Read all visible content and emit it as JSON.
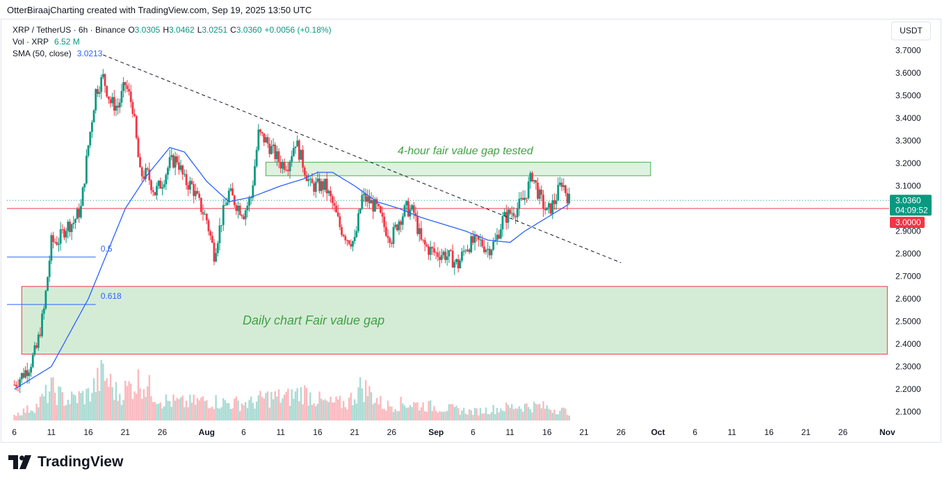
{
  "credit": "OtterBiraajCharting created with TradingView.com, Sep 19, 2025 13:50 UTC",
  "legend": {
    "symbol": "XRP / TetherUS · 6h · Binance",
    "o_label": "O",
    "o": "3.0305",
    "h_label": "H",
    "h": "3.0462",
    "l_label": "L",
    "l": "3.0251",
    "c_label": "C",
    "c": "3.0360",
    "change": "+0.0056 (+0.18%)",
    "vol_label": "Vol · XRP",
    "vol_value": "6.52 M",
    "sma_label": "SMA (50, close)",
    "sma_value": "3.0213"
  },
  "currency": "USDT",
  "brand": "TradingView",
  "colors": {
    "up": "#089981",
    "down": "#f23645",
    "sma": "#2962ff",
    "zone_fill": "#d4ecd5",
    "zone_stroke": "#4caf50",
    "support": "#f23645"
  },
  "chart_data": {
    "type": "candlestick",
    "title": "XRP / TetherUS · 6h · Binance",
    "ylim": [
      2.05,
      3.75
    ],
    "y_ticks": [
      "2.1000",
      "2.2000",
      "2.3000",
      "2.4000",
      "2.5000",
      "2.6000",
      "2.7000",
      "2.8000",
      "2.9000",
      "3.0000",
      "3.1000",
      "3.2000",
      "3.3000",
      "3.4000",
      "3.5000",
      "3.6000",
      "3.7000"
    ],
    "x_ticks": [
      {
        "label": "6",
        "date": "2025-07-06"
      },
      {
        "label": "11",
        "date": "2025-07-11"
      },
      {
        "label": "16",
        "date": "2025-07-16"
      },
      {
        "label": "21",
        "date": "2025-07-21"
      },
      {
        "label": "26",
        "date": "2025-07-26"
      },
      {
        "label": "Aug",
        "date": "2025-08-01"
      },
      {
        "label": "6",
        "date": "2025-08-06"
      },
      {
        "label": "11",
        "date": "2025-08-11"
      },
      {
        "label": "16",
        "date": "2025-08-16"
      },
      {
        "label": "21",
        "date": "2025-08-21"
      },
      {
        "label": "26",
        "date": "2025-08-26"
      },
      {
        "label": "Sep",
        "date": "2025-09-01"
      },
      {
        "label": "6",
        "date": "2025-09-06"
      },
      {
        "label": "11",
        "date": "2025-09-11"
      },
      {
        "label": "16",
        "date": "2025-09-16"
      },
      {
        "label": "21",
        "date": "2025-09-21"
      },
      {
        "label": "26",
        "date": "2025-09-26"
      },
      {
        "label": "Oct",
        "date": "2025-10-01"
      },
      {
        "label": "6",
        "date": "2025-10-06"
      },
      {
        "label": "11",
        "date": "2025-10-11"
      },
      {
        "label": "16",
        "date": "2025-10-16"
      },
      {
        "label": "21",
        "date": "2025-10-21"
      },
      {
        "label": "26",
        "date": "2025-10-26"
      },
      {
        "label": "Nov",
        "date": "2025-11-01"
      }
    ],
    "price_path": [
      [
        "2025-07-06",
        2.22
      ],
      [
        "2025-07-07",
        2.26
      ],
      [
        "2025-07-08",
        2.3
      ],
      [
        "2025-07-09",
        2.38
      ],
      [
        "2025-07-10",
        2.55
      ],
      [
        "2025-07-11",
        2.85
      ],
      [
        "2025-07-12",
        2.86
      ],
      [
        "2025-07-13",
        2.92
      ],
      [
        "2025-07-14",
        2.94
      ],
      [
        "2025-07-15",
        3.0
      ],
      [
        "2025-07-16",
        3.28
      ],
      [
        "2025-07-17",
        3.52
      ],
      [
        "2025-07-18",
        3.58
      ],
      [
        "2025-07-19",
        3.47
      ],
      [
        "2025-07-20",
        3.45
      ],
      [
        "2025-07-21",
        3.55
      ],
      [
        "2025-07-22",
        3.45
      ],
      [
        "2025-07-23",
        3.15
      ],
      [
        "2025-07-24",
        3.15
      ],
      [
        "2025-07-25",
        3.07
      ],
      [
        "2025-07-26",
        3.12
      ],
      [
        "2025-07-27",
        3.2
      ],
      [
        "2025-07-28",
        3.22
      ],
      [
        "2025-07-29",
        3.12
      ],
      [
        "2025-07-30",
        3.1
      ],
      [
        "2025-07-31",
        3.02
      ],
      [
        "2025-08-01",
        2.95
      ],
      [
        "2025-08-02",
        2.8
      ],
      [
        "2025-08-03",
        2.95
      ],
      [
        "2025-08-04",
        3.07
      ],
      [
        "2025-08-05",
        3.02
      ],
      [
        "2025-08-06",
        2.98
      ],
      [
        "2025-08-07",
        3.05
      ],
      [
        "2025-08-08",
        3.33
      ],
      [
        "2025-08-09",
        3.3
      ],
      [
        "2025-08-10",
        3.25
      ],
      [
        "2025-08-11",
        3.2
      ],
      [
        "2025-08-12",
        3.2
      ],
      [
        "2025-08-13",
        3.3
      ],
      [
        "2025-08-14",
        3.2
      ],
      [
        "2025-08-15",
        3.1
      ],
      [
        "2025-08-16",
        3.1
      ],
      [
        "2025-08-17",
        3.1
      ],
      [
        "2025-08-18",
        3.02
      ],
      [
        "2025-08-19",
        2.92
      ],
      [
        "2025-08-20",
        2.87
      ],
      [
        "2025-08-21",
        2.85
      ],
      [
        "2025-08-22",
        3.05
      ],
      [
        "2025-08-23",
        3.03
      ],
      [
        "2025-08-24",
        3.0
      ],
      [
        "2025-08-25",
        2.92
      ],
      [
        "2025-08-26",
        2.87
      ],
      [
        "2025-08-27",
        2.95
      ],
      [
        "2025-08-28",
        3.0
      ],
      [
        "2025-08-29",
        2.98
      ],
      [
        "2025-08-30",
        2.85
      ],
      [
        "2025-08-31",
        2.82
      ],
      [
        "2025-09-01",
        2.8
      ],
      [
        "2025-09-02",
        2.8
      ],
      [
        "2025-09-03",
        2.78
      ],
      [
        "2025-09-04",
        2.75
      ],
      [
        "2025-09-05",
        2.83
      ],
      [
        "2025-09-06",
        2.85
      ],
      [
        "2025-09-07",
        2.85
      ],
      [
        "2025-09-08",
        2.82
      ],
      [
        "2025-09-09",
        2.85
      ],
      [
        "2025-09-10",
        2.95
      ],
      [
        "2025-09-11",
        2.98
      ],
      [
        "2025-09-12",
        3.0
      ],
      [
        "2025-09-13",
        3.05
      ],
      [
        "2025-09-14",
        3.15
      ],
      [
        "2025-09-15",
        3.05
      ],
      [
        "2025-09-16",
        2.98
      ],
      [
        "2025-09-17",
        3.03
      ],
      [
        "2025-09-18",
        3.12
      ],
      [
        "2025-09-19",
        3.036
      ]
    ],
    "sma_path": [
      [
        "2025-07-06",
        2.2
      ],
      [
        "2025-07-11",
        2.3
      ],
      [
        "2025-07-16",
        2.6
      ],
      [
        "2025-07-21",
        3.0
      ],
      [
        "2025-07-24",
        3.15
      ],
      [
        "2025-07-27",
        3.27
      ],
      [
        "2025-07-29",
        3.25
      ],
      [
        "2025-08-01",
        3.12
      ],
      [
        "2025-08-04",
        3.03
      ],
      [
        "2025-08-07",
        3.05
      ],
      [
        "2025-08-11",
        3.1
      ],
      [
        "2025-08-14",
        3.13
      ],
      [
        "2025-08-16",
        3.16
      ],
      [
        "2025-08-18",
        3.16
      ],
      [
        "2025-08-21",
        3.1
      ],
      [
        "2025-08-24",
        3.03
      ],
      [
        "2025-08-27",
        3.0
      ],
      [
        "2025-08-30",
        2.96
      ],
      [
        "2025-09-02",
        2.93
      ],
      [
        "2025-09-05",
        2.9
      ],
      [
        "2025-09-08",
        2.86
      ],
      [
        "2025-09-11",
        2.85
      ],
      [
        "2025-09-13",
        2.9
      ],
      [
        "2025-09-16",
        2.96
      ],
      [
        "2025-09-19",
        3.02
      ]
    ],
    "volume_profile": [
      [
        "2025-07-06",
        0.1
      ],
      [
        "2025-07-09",
        0.25
      ],
      [
        "2025-07-11",
        0.55
      ],
      [
        "2025-07-13",
        0.35
      ],
      [
        "2025-07-16",
        0.45
      ],
      [
        "2025-07-18",
        0.8
      ],
      [
        "2025-07-20",
        0.45
      ],
      [
        "2025-07-23",
        0.7
      ],
      [
        "2025-07-26",
        0.35
      ],
      [
        "2025-07-29",
        0.3
      ],
      [
        "2025-08-01",
        0.35
      ],
      [
        "2025-08-04",
        0.3
      ],
      [
        "2025-08-07",
        0.3
      ],
      [
        "2025-08-09",
        0.4
      ],
      [
        "2025-08-12",
        0.4
      ],
      [
        "2025-08-14",
        0.5
      ],
      [
        "2025-08-17",
        0.3
      ],
      [
        "2025-08-20",
        0.3
      ],
      [
        "2025-08-22",
        0.6
      ],
      [
        "2025-08-25",
        0.25
      ],
      [
        "2025-08-28",
        0.3
      ],
      [
        "2025-08-31",
        0.25
      ],
      [
        "2025-09-03",
        0.2
      ],
      [
        "2025-09-06",
        0.15
      ],
      [
        "2025-09-09",
        0.2
      ],
      [
        "2025-09-12",
        0.25
      ],
      [
        "2025-09-15",
        0.25
      ],
      [
        "2025-09-19",
        0.15
      ]
    ],
    "trendline": {
      "from": [
        "2025-07-18",
        3.68
      ],
      "to": [
        "2025-09-26",
        2.76
      ],
      "style": "dashed"
    },
    "zones": [
      {
        "label": "4-hour fair value gap tested",
        "x_from": "2025-08-09",
        "x_to": "2025-09-30",
        "y_from": 3.145,
        "y_to": 3.205
      },
      {
        "label": "Daily chart Fair value gap",
        "x_from": "2025-07-07",
        "x_to": "2025-11-01",
        "y_from": 2.355,
        "y_to": 2.655
      }
    ],
    "fib_levels": [
      {
        "label": "0.5",
        "price": 2.785,
        "x_from": "2025-07-05",
        "x_to": "2025-07-17"
      },
      {
        "label": "0.618",
        "price": 2.575,
        "x_from": "2025-07-05",
        "x_to": "2025-07-17"
      }
    ],
    "support_line": {
      "price": 3.0,
      "label": "3.0000"
    },
    "last_price": {
      "price": 3.036,
      "label": "3.0360",
      "countdown": "04:09:52"
    }
  }
}
